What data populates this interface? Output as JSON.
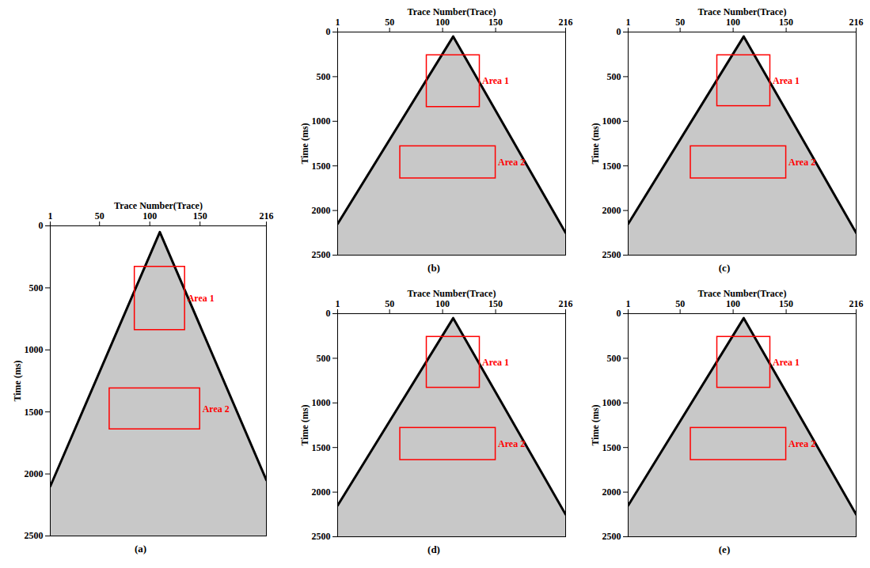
{
  "chart_data": [
    {
      "type": "line",
      "caption": "(a)",
      "x_label": "Trace Number(Trace)",
      "y_label": "Time (ms)",
      "xlim": [
        1,
        216
      ],
      "xticks": [
        1,
        50,
        100,
        150,
        216
      ],
      "ylim": [
        0,
        2500
      ],
      "yticks": [
        0,
        500,
        1000,
        1500,
        2000,
        2500
      ],
      "series": [
        {
          "color": "#000000",
          "x": [
            1,
            110,
            216
          ],
          "values": [
            2100,
            50,
            2050
          ]
        }
      ],
      "annotations": [
        {
          "text": "Area 1",
          "x1": 85,
          "x2": 135,
          "y1": 330,
          "y2": 840,
          "color": "#ff0000"
        },
        {
          "text": "Area 2",
          "x1": 60,
          "x2": 150,
          "y1": 1310,
          "y2": 1640,
          "color": "#ff0000"
        }
      ]
    },
    {
      "type": "line",
      "caption": "(b)",
      "x_label": "Trace Number(Trace)",
      "y_label": "Time (ms)",
      "xlim": [
        1,
        216
      ],
      "xticks": [
        1,
        50,
        100,
        150,
        216
      ],
      "ylim": [
        0,
        2500
      ],
      "yticks": [
        0,
        500,
        1000,
        1500,
        2000,
        2500
      ],
      "series": [
        {
          "color": "#000000",
          "x": [
            1,
            110,
            216
          ],
          "values": [
            2150,
            50,
            2250
          ]
        }
      ],
      "annotations": [
        {
          "text": "Area 1",
          "x1": 85,
          "x2": 135,
          "y1": 260,
          "y2": 840,
          "color": "#ff0000"
        },
        {
          "text": "Area 2",
          "x1": 60,
          "x2": 150,
          "y1": 1280,
          "y2": 1640,
          "color": "#ff0000"
        }
      ]
    },
    {
      "type": "line",
      "caption": "(c)",
      "x_label": "Trace Number(Trace)",
      "y_label": "Time (ms)",
      "xlim": [
        1,
        216
      ],
      "xticks": [
        1,
        50,
        100,
        150,
        216
      ],
      "ylim": [
        0,
        2500
      ],
      "yticks": [
        0,
        500,
        1000,
        1500,
        2000,
        2500
      ],
      "series": [
        {
          "color": "#000000",
          "x": [
            1,
            110,
            216
          ],
          "values": [
            2150,
            50,
            2250
          ]
        }
      ],
      "annotations": [
        {
          "text": "Area 1",
          "x1": 85,
          "x2": 135,
          "y1": 260,
          "y2": 830,
          "color": "#ff0000"
        },
        {
          "text": "Area 2",
          "x1": 60,
          "x2": 150,
          "y1": 1280,
          "y2": 1640,
          "color": "#ff0000"
        }
      ]
    },
    {
      "type": "line",
      "caption": "(d)",
      "x_label": "Trace Number(Trace)",
      "y_label": "Time (ms)",
      "xlim": [
        1,
        216
      ],
      "xticks": [
        1,
        50,
        100,
        150,
        216
      ],
      "ylim": [
        0,
        2500
      ],
      "yticks": [
        0,
        500,
        1000,
        1500,
        2000,
        2500
      ],
      "series": [
        {
          "color": "#000000",
          "x": [
            1,
            110,
            216
          ],
          "values": [
            2150,
            50,
            2250
          ]
        }
      ],
      "annotations": [
        {
          "text": "Area 1",
          "x1": 85,
          "x2": 135,
          "y1": 260,
          "y2": 830,
          "color": "#ff0000"
        },
        {
          "text": "Area 2",
          "x1": 60,
          "x2": 150,
          "y1": 1280,
          "y2": 1640,
          "color": "#ff0000"
        }
      ]
    },
    {
      "type": "line",
      "caption": "(e)",
      "x_label": "Trace Number(Trace)",
      "y_label": "Time (ms)",
      "xlim": [
        1,
        216
      ],
      "xticks": [
        1,
        50,
        100,
        150,
        216
      ],
      "ylim": [
        0,
        2500
      ],
      "yticks": [
        0,
        500,
        1000,
        1500,
        2000,
        2500
      ],
      "series": [
        {
          "color": "#000000",
          "x": [
            1,
            110,
            216
          ],
          "values": [
            2150,
            50,
            2250
          ]
        }
      ],
      "annotations": [
        {
          "text": "Area 1",
          "x1": 85,
          "x2": 135,
          "y1": 260,
          "y2": 830,
          "color": "#ff0000"
        },
        {
          "text": "Area 2",
          "x1": 60,
          "x2": 150,
          "y1": 1280,
          "y2": 1640,
          "color": "#ff0000"
        }
      ]
    }
  ]
}
